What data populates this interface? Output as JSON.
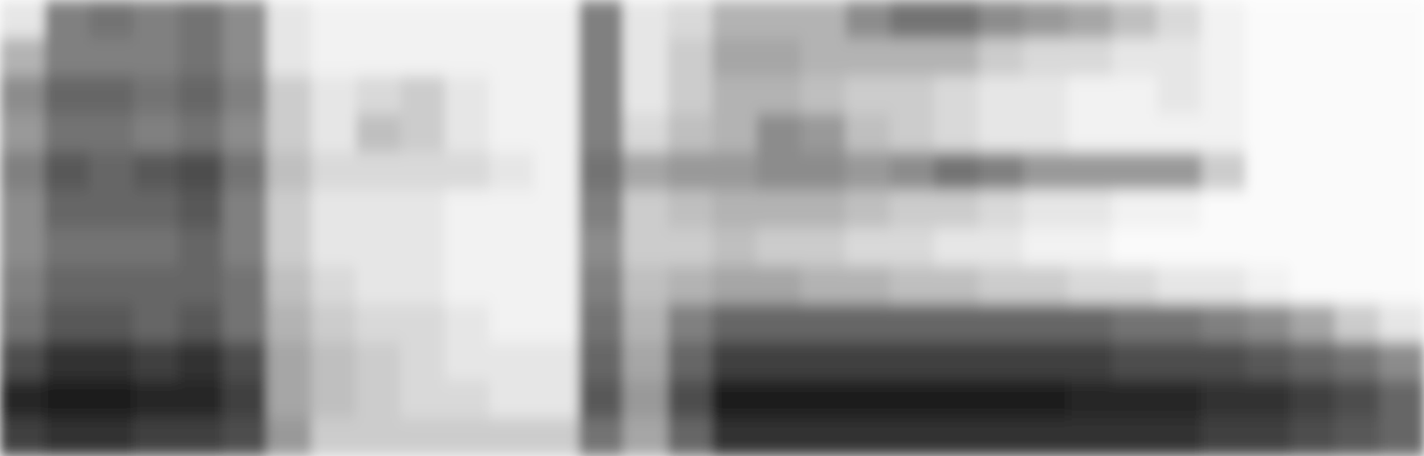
{
  "chart_data": {
    "type": "heatmap",
    "tick_labels": false,
    "zlim": [
      0,
      1
    ],
    "cells": [
      [
        0.1,
        0.5,
        0.55,
        0.5,
        0.55,
        0.45,
        0.1,
        0.05,
        0.05,
        0.05,
        0.05,
        0.05,
        0.05,
        0.5,
        0.1,
        0.15,
        0.3,
        0.3,
        0.3,
        0.45,
        0.55,
        0.55,
        0.45,
        0.4,
        0.35,
        0.25,
        0.15,
        0.05,
        0.02,
        0.02,
        0.02,
        0.02
      ],
      [
        0.3,
        0.5,
        0.5,
        0.5,
        0.55,
        0.45,
        0.1,
        0.05,
        0.05,
        0.05,
        0.05,
        0.05,
        0.05,
        0.5,
        0.1,
        0.2,
        0.35,
        0.35,
        0.3,
        0.3,
        0.3,
        0.3,
        0.2,
        0.15,
        0.15,
        0.1,
        0.1,
        0.05,
        0.02,
        0.02,
        0.02,
        0.02
      ],
      [
        0.45,
        0.6,
        0.6,
        0.55,
        0.6,
        0.5,
        0.2,
        0.1,
        0.15,
        0.2,
        0.1,
        0.05,
        0.05,
        0.5,
        0.1,
        0.2,
        0.3,
        0.3,
        0.25,
        0.2,
        0.2,
        0.15,
        0.1,
        0.1,
        0.05,
        0.05,
        0.1,
        0.05,
        0.02,
        0.02,
        0.02,
        0.02
      ],
      [
        0.4,
        0.55,
        0.55,
        0.5,
        0.55,
        0.45,
        0.2,
        0.1,
        0.25,
        0.2,
        0.1,
        0.05,
        0.05,
        0.5,
        0.15,
        0.25,
        0.3,
        0.45,
        0.4,
        0.25,
        0.2,
        0.15,
        0.1,
        0.1,
        0.05,
        0.05,
        0.05,
        0.05,
        0.02,
        0.02,
        0.02,
        0.02
      ],
      [
        0.5,
        0.65,
        0.6,
        0.65,
        0.7,
        0.55,
        0.25,
        0.15,
        0.15,
        0.15,
        0.15,
        0.1,
        0.05,
        0.55,
        0.35,
        0.4,
        0.4,
        0.45,
        0.45,
        0.4,
        0.45,
        0.55,
        0.5,
        0.4,
        0.4,
        0.4,
        0.4,
        0.2,
        0.02,
        0.02,
        0.02,
        0.02
      ],
      [
        0.45,
        0.6,
        0.6,
        0.6,
        0.65,
        0.5,
        0.2,
        0.1,
        0.1,
        0.1,
        0.05,
        0.05,
        0.05,
        0.5,
        0.2,
        0.25,
        0.3,
        0.3,
        0.3,
        0.25,
        0.2,
        0.2,
        0.15,
        0.1,
        0.1,
        0.05,
        0.05,
        0.02,
        0.02,
        0.02,
        0.02,
        0.02
      ],
      [
        0.45,
        0.55,
        0.55,
        0.55,
        0.6,
        0.5,
        0.2,
        0.1,
        0.1,
        0.1,
        0.05,
        0.05,
        0.05,
        0.45,
        0.2,
        0.2,
        0.25,
        0.2,
        0.2,
        0.15,
        0.15,
        0.1,
        0.1,
        0.05,
        0.05,
        0.02,
        0.02,
        0.02,
        0.02,
        0.02,
        0.02,
        0.02
      ],
      [
        0.5,
        0.6,
        0.6,
        0.6,
        0.6,
        0.55,
        0.25,
        0.15,
        0.1,
        0.1,
        0.05,
        0.05,
        0.05,
        0.5,
        0.25,
        0.3,
        0.35,
        0.35,
        0.3,
        0.3,
        0.25,
        0.25,
        0.2,
        0.2,
        0.15,
        0.15,
        0.1,
        0.1,
        0.05,
        0.02,
        0.02,
        0.02
      ],
      [
        0.55,
        0.65,
        0.65,
        0.6,
        0.65,
        0.55,
        0.3,
        0.2,
        0.15,
        0.15,
        0.1,
        0.05,
        0.05,
        0.55,
        0.3,
        0.5,
        0.6,
        0.6,
        0.6,
        0.6,
        0.6,
        0.6,
        0.6,
        0.6,
        0.6,
        0.55,
        0.55,
        0.5,
        0.45,
        0.35,
        0.2,
        0.1
      ],
      [
        0.7,
        0.8,
        0.8,
        0.75,
        0.8,
        0.7,
        0.35,
        0.25,
        0.2,
        0.15,
        0.1,
        0.1,
        0.1,
        0.6,
        0.35,
        0.6,
        0.75,
        0.75,
        0.75,
        0.75,
        0.75,
        0.75,
        0.75,
        0.75,
        0.75,
        0.7,
        0.7,
        0.7,
        0.65,
        0.6,
        0.55,
        0.45
      ],
      [
        0.85,
        0.9,
        0.9,
        0.85,
        0.85,
        0.75,
        0.35,
        0.25,
        0.2,
        0.15,
        0.15,
        0.1,
        0.1,
        0.65,
        0.4,
        0.7,
        0.9,
        0.9,
        0.9,
        0.9,
        0.9,
        0.9,
        0.9,
        0.9,
        0.85,
        0.85,
        0.85,
        0.8,
        0.8,
        0.75,
        0.7,
        0.6
      ],
      [
        0.75,
        0.8,
        0.8,
        0.75,
        0.75,
        0.7,
        0.4,
        0.2,
        0.2,
        0.2,
        0.2,
        0.2,
        0.2,
        0.55,
        0.35,
        0.6,
        0.8,
        0.8,
        0.8,
        0.8,
        0.8,
        0.8,
        0.8,
        0.8,
        0.8,
        0.8,
        0.8,
        0.75,
        0.75,
        0.7,
        0.65,
        0.6
      ]
    ]
  }
}
